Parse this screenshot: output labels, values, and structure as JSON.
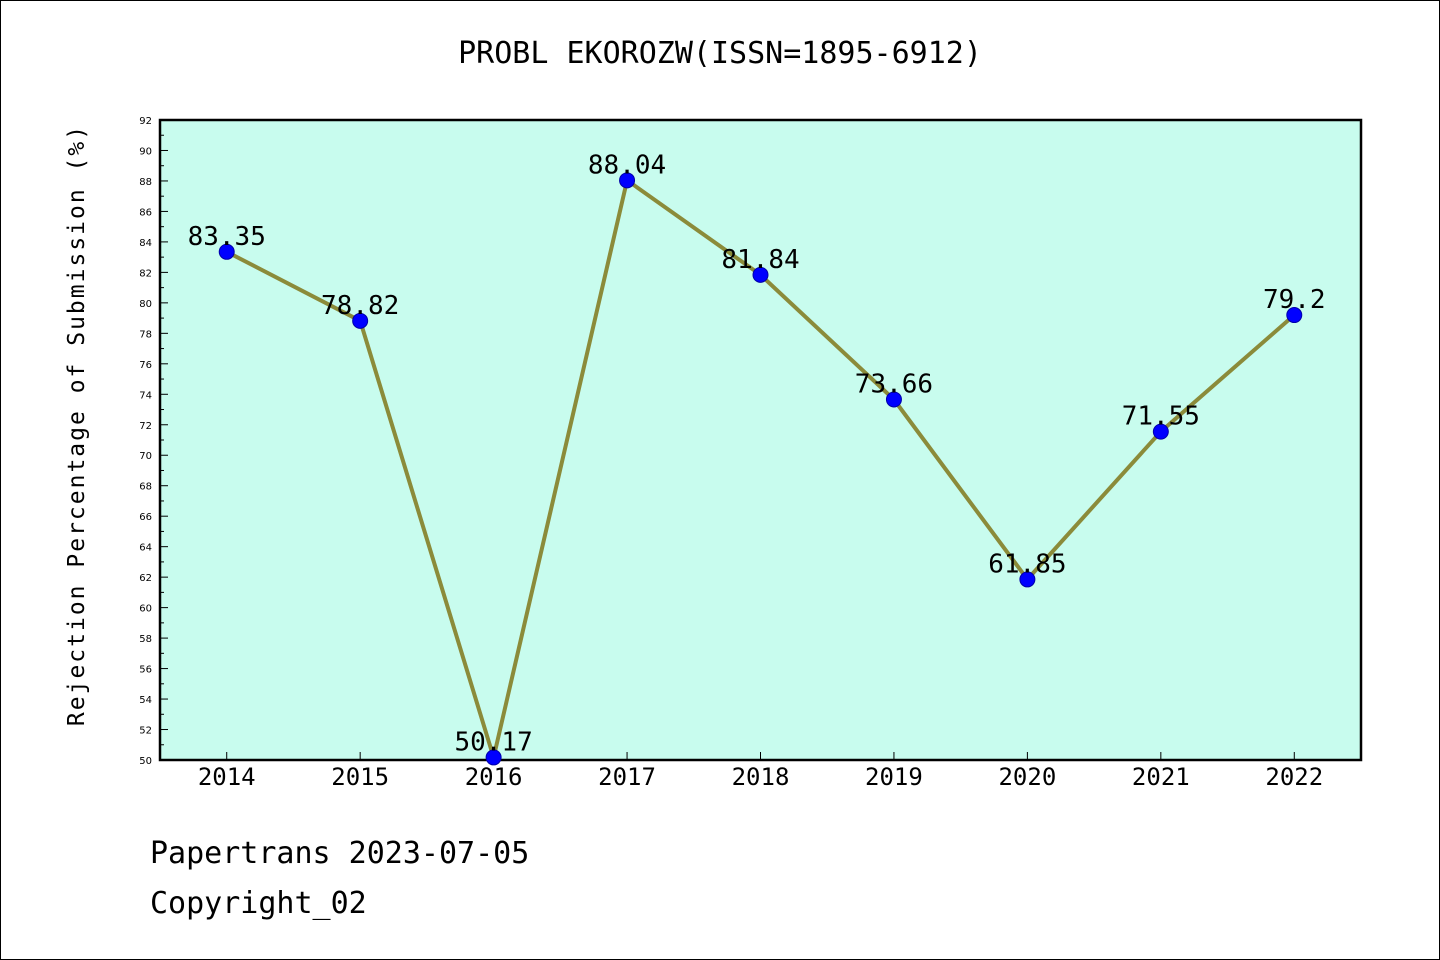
{
  "chart_data": {
    "type": "line",
    "title": "PROBL EKOROZW(ISSN=1895-6912)",
    "xlabel": "",
    "ylabel": "Rejection Percentage of Submission (%)",
    "categories": [
      "2014",
      "2015",
      "2016",
      "2017",
      "2018",
      "2019",
      "2020",
      "2021",
      "2022"
    ],
    "values": [
      83.35,
      78.82,
      50.17,
      88.04,
      81.84,
      73.66,
      61.85,
      71.55,
      79.2
    ],
    "data_labels": [
      "83.35",
      "78.82",
      "50.17",
      "88.04",
      "81.84",
      "73.66",
      "61.85",
      "71.55",
      "79.2"
    ],
    "ylim": [
      50,
      92
    ],
    "yticks": [
      "50",
      "52",
      "54",
      "56",
      "58",
      "60",
      "62",
      "64",
      "66",
      "68",
      "70",
      "72",
      "74",
      "76",
      "78",
      "80",
      "82",
      "84",
      "86",
      "88",
      "90",
      "92"
    ],
    "grid": false,
    "colors": {
      "plot_background": "#c8fcee",
      "line": "#8b8b3a",
      "marker": "#0000ff"
    }
  },
  "footer": {
    "line1": "Papertrans 2023-07-05",
    "line2": "Copyright_02"
  }
}
